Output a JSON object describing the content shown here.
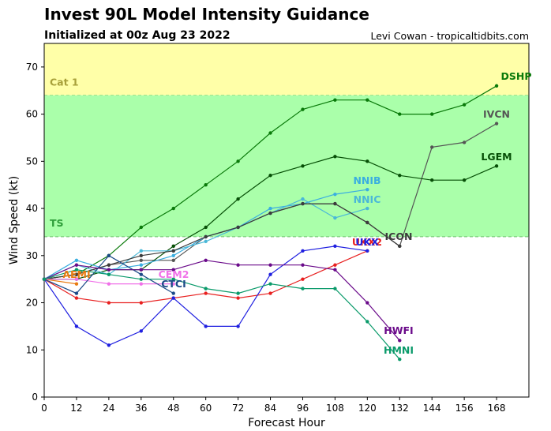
{
  "header": {
    "title": "Invest 90L Model Intensity Guidance",
    "subtitle": "Initialized at 00z Aug 23 2022",
    "credit": "Levi Cowan - tropicaltidbits.com"
  },
  "chart_data": {
    "type": "line",
    "title": "Invest 90L Model Intensity Guidance",
    "subtitle": "Initialized at 00z Aug 23 2022",
    "xlabel": "Forecast Hour",
    "ylabel": "Wind Speed (kt)",
    "xlim": [
      0,
      180
    ],
    "ylim": [
      0,
      75
    ],
    "xticks": [
      0,
      12,
      24,
      36,
      48,
      60,
      72,
      84,
      96,
      108,
      120,
      132,
      144,
      156,
      168
    ],
    "yticks": [
      0,
      10,
      20,
      30,
      40,
      50,
      60,
      70
    ],
    "bands": [
      {
        "label": "Cat 1",
        "from": 64,
        "to": 75,
        "color": "#ffffa8",
        "label_color": "#a8a03a"
      },
      {
        "label": "TS",
        "from": 34,
        "to": 64,
        "color": "#aaffaa",
        "label_color": "#2f9e3a"
      }
    ],
    "series": [
      {
        "name": "DSHP",
        "color": "#0a7a0a",
        "x": [
          0,
          12,
          24,
          36,
          48,
          60,
          72,
          84,
          96,
          108,
          120,
          132,
          144,
          156,
          168
        ],
        "values": [
          25,
          26,
          30,
          36,
          40,
          45,
          50,
          56,
          61,
          63,
          63,
          60,
          60,
          62,
          66
        ]
      },
      {
        "name": "IVCN",
        "color": "#555555",
        "x": [
          0,
          12,
          24,
          36,
          48,
          60,
          72,
          84,
          96,
          108,
          120,
          132,
          144,
          156,
          168
        ],
        "values": [
          25,
          26,
          28,
          29,
          29,
          34,
          36,
          39,
          41,
          41,
          37,
          32,
          53,
          54,
          58
        ]
      },
      {
        "name": "LGEM",
        "color": "#064f06",
        "x": [
          0,
          12,
          24,
          36,
          48,
          60,
          72,
          84,
          96,
          108,
          120,
          132,
          144,
          156,
          168
        ],
        "values": [
          25,
          25,
          27,
          27,
          32,
          36,
          42,
          47,
          49,
          51,
          50,
          47,
          46,
          46,
          49
        ]
      },
      {
        "name": "NNIB",
        "color": "#3aaee0",
        "x": [
          0,
          12,
          24,
          36,
          48,
          60,
          72,
          84,
          96,
          108,
          120
        ],
        "values": [
          25,
          29,
          27,
          28,
          30,
          34,
          36,
          40,
          41,
          43,
          44
        ]
      },
      {
        "name": "NNIC",
        "color": "#4ab8d8",
        "x": [
          0,
          12,
          24,
          36,
          48,
          60,
          72,
          84,
          96,
          108,
          120
        ],
        "values": [
          25,
          28,
          26,
          31,
          31,
          33,
          36,
          39,
          42,
          38,
          40
        ]
      },
      {
        "name": "ICON",
        "color": "#3c3c3c",
        "x": [
          0,
          12,
          24,
          36,
          48,
          60,
          72,
          84,
          96,
          108,
          120,
          132
        ],
        "values": [
          25,
          26,
          28,
          30,
          31,
          34,
          36,
          39,
          41,
          41,
          37,
          32
        ]
      },
      {
        "name": "UKX2",
        "color": "#e82020",
        "x": [
          0,
          12,
          24,
          36,
          48,
          60,
          72,
          84,
          96,
          108,
          120
        ],
        "values": [
          25,
          21,
          20,
          20,
          21,
          22,
          21,
          22,
          25,
          28,
          31
        ]
      },
      {
        "name": "UKX",
        "color": "#2020e0",
        "x": [
          0,
          12,
          24,
          36,
          48,
          60,
          72,
          84,
          96,
          108,
          120
        ],
        "values": [
          25,
          15,
          11,
          14,
          21,
          15,
          15,
          26,
          31,
          32,
          31
        ]
      },
      {
        "name": "AEMI",
        "color": "#e87a10",
        "x": [
          0,
          12
        ],
        "values": [
          25,
          24
        ]
      },
      {
        "name": "CEM2",
        "color": "#f070e8",
        "x": [
          0,
          12,
          24,
          36,
          48
        ],
        "values": [
          25,
          25,
          24,
          24,
          24
        ]
      },
      {
        "name": "CTCI",
        "color": "#1c4a88",
        "x": [
          0,
          12,
          24,
          36,
          48
        ],
        "values": [
          25,
          22,
          30,
          26,
          22
        ]
      },
      {
        "name": "HWFI",
        "color": "#6a0a8a",
        "x": [
          0,
          12,
          24,
          36,
          48,
          60,
          72,
          84,
          96,
          108,
          120,
          132
        ],
        "values": [
          25,
          28,
          27,
          27,
          27,
          29,
          28,
          28,
          28,
          27,
          20,
          12
        ]
      },
      {
        "name": "HMNI",
        "color": "#0a9a6a",
        "x": [
          0,
          12,
          24,
          36,
          48,
          60,
          72,
          84,
          96,
          108,
          120,
          132
        ],
        "values": [
          25,
          27,
          26,
          25,
          25,
          23,
          22,
          24,
          23,
          23,
          16,
          8
        ]
      }
    ]
  }
}
